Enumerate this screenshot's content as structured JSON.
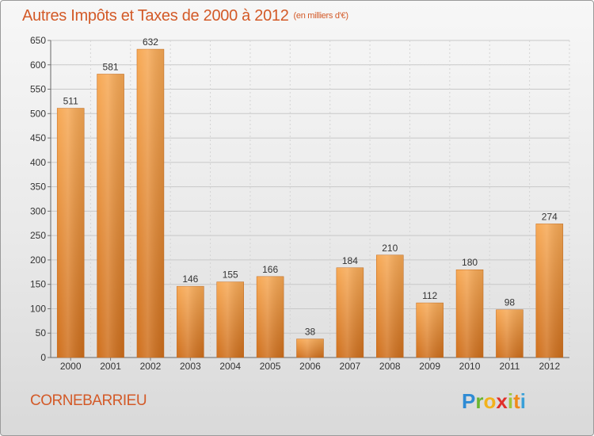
{
  "header": {
    "title": "Autres Impôts et Taxes de 2000 à 2012",
    "unit": "(en milliers d'€)"
  },
  "footer": {
    "commune": "CORNEBARRIEU",
    "logo_letters": [
      "P",
      "r",
      "o",
      "x",
      "i",
      "t",
      "i"
    ]
  },
  "colors": {
    "title": "#d35a28",
    "bar_light": "#f5a24e",
    "bar_dark": "#d27320"
  },
  "chart_data": {
    "type": "bar",
    "title": "Autres Impôts et Taxes de 2000 à 2012",
    "subtitle": "(en milliers d'€)",
    "categories": [
      "2000",
      "2001",
      "2002",
      "2003",
      "2004",
      "2005",
      "2006",
      "2007",
      "2008",
      "2009",
      "2010",
      "2011",
      "2012"
    ],
    "values": [
      511,
      581,
      632,
      146,
      155,
      166,
      38,
      184,
      210,
      112,
      180,
      98,
      274
    ],
    "ylim": [
      0,
      650
    ],
    "yticks": [
      0,
      50,
      100,
      150,
      200,
      250,
      300,
      350,
      400,
      450,
      500,
      550,
      600,
      650
    ],
    "grid": true,
    "legend": "none"
  }
}
